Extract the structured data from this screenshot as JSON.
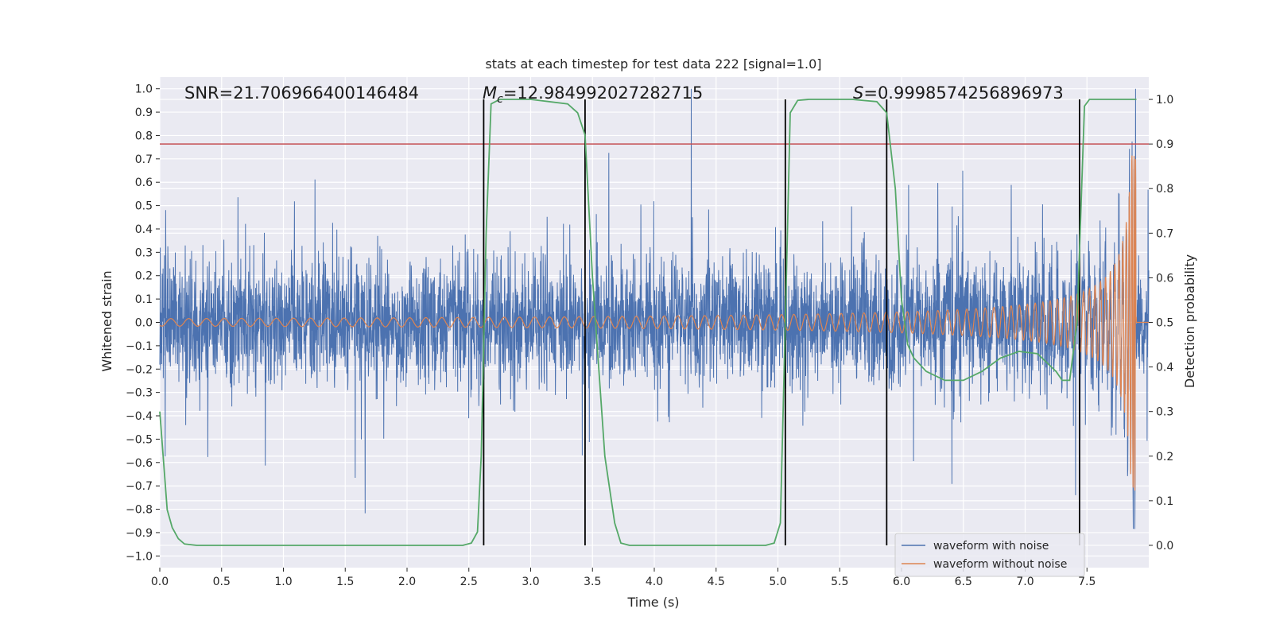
{
  "chart_data": {
    "type": "line",
    "title": "stats at each timestep for test data 222 [signal=1.0]",
    "xlabel": "Time (s)",
    "ylabel_left": "Whitened strain",
    "ylabel_right": "Detection probability",
    "xlim": [
      0.0,
      8.0
    ],
    "ylim_left": [
      -1.05,
      1.05
    ],
    "ylim_right": [
      -0.05,
      1.05
    ],
    "x_ticks": [
      "0.0",
      "0.5",
      "1.0",
      "1.5",
      "2.0",
      "2.5",
      "3.0",
      "3.5",
      "4.0",
      "4.5",
      "5.0",
      "5.5",
      "6.0",
      "6.5",
      "7.0",
      "7.5"
    ],
    "x_tick_values": [
      0.0,
      0.5,
      1.0,
      1.5,
      2.0,
      2.5,
      3.0,
      3.5,
      4.0,
      4.5,
      5.0,
      5.5,
      6.0,
      6.5,
      7.0,
      7.5
    ],
    "y_left_ticks": [
      "1.0",
      "0.9",
      "0.8",
      "0.7",
      "0.6",
      "0.5",
      "0.4",
      "0.3",
      "0.2",
      "0.1",
      "0.0",
      "−0.1",
      "−0.2",
      "−0.3",
      "−0.4",
      "−0.5",
      "−0.6",
      "−0.7",
      "−0.8",
      "−0.9",
      "−1.0"
    ],
    "y_left_tick_values": [
      1.0,
      0.9,
      0.8,
      0.7,
      0.6,
      0.5,
      0.4,
      0.3,
      0.2,
      0.1,
      0.0,
      -0.1,
      -0.2,
      -0.3,
      -0.4,
      -0.5,
      -0.6,
      -0.7,
      -0.8,
      -0.9,
      -1.0
    ],
    "y_right_ticks": [
      "1.0",
      "0.9",
      "0.8",
      "0.7",
      "0.6",
      "0.5",
      "0.4",
      "0.3",
      "0.2",
      "0.1",
      "0.0"
    ],
    "y_right_tick_values": [
      1.0,
      0.9,
      0.8,
      0.7,
      0.6,
      0.5,
      0.4,
      0.3,
      0.2,
      0.1,
      0.0
    ],
    "annotations": {
      "snr": "SNR=21.706966400146484",
      "mc": "=12.984992027282715",
      "mc_symbol": "M",
      "mc_sub": "c",
      "s": "=0.9998574256896973",
      "s_symbol": "S"
    },
    "threshold_probability": 0.9,
    "event_lines_x": [
      2.62,
      3.44,
      5.06,
      5.88,
      7.44
    ],
    "series": [
      {
        "name": "waveform with noise",
        "color": "#4c72b0",
        "axis": "left",
        "description_values": {
          "noise_std": 0.13,
          "spike_max": 1.0,
          "spike_min": -0.94
        }
      },
      {
        "name": "waveform without noise",
        "color": "#dd8452",
        "axis": "left",
        "description_values": {
          "chirp_end_time": 7.9,
          "chirp_peak": 0.71,
          "chirp_trough": -0.72
        }
      },
      {
        "name": "detection probability",
        "color": "#55a868",
        "axis": "right",
        "x": [
          0.0,
          0.06,
          0.1,
          0.15,
          0.2,
          0.3,
          1.0,
          2.0,
          2.45,
          2.52,
          2.57,
          2.6,
          2.64,
          2.68,
          2.75,
          3.0,
          3.3,
          3.38,
          3.44,
          3.5,
          3.6,
          3.68,
          3.73,
          3.8,
          4.5,
          4.9,
          4.97,
          5.02,
          5.06,
          5.1,
          5.16,
          5.25,
          5.6,
          5.8,
          5.88,
          5.95,
          6.0,
          6.05,
          6.1,
          6.2,
          6.35,
          6.5,
          6.65,
          6.8,
          6.95,
          7.1,
          7.25,
          7.3,
          7.36,
          7.42,
          7.48,
          7.52,
          7.6,
          7.9
        ],
        "y": [
          0.3,
          0.08,
          0.04,
          0.015,
          0.003,
          0.0,
          0.0,
          0.0,
          0.0,
          0.005,
          0.03,
          0.2,
          0.7,
          0.99,
          1.0,
          1.0,
          0.99,
          0.97,
          0.92,
          0.6,
          0.2,
          0.05,
          0.005,
          0.0,
          0.0,
          0.0,
          0.005,
          0.05,
          0.5,
          0.97,
          0.998,
          1.0,
          1.0,
          0.995,
          0.97,
          0.8,
          0.55,
          0.45,
          0.42,
          0.39,
          0.37,
          0.37,
          0.39,
          0.42,
          0.435,
          0.43,
          0.39,
          0.37,
          0.37,
          0.5,
          0.985,
          1.0,
          1.0,
          1.0
        ]
      }
    ],
    "legend": {
      "location": "lower-right",
      "entries": [
        "waveform with noise",
        "waveform without noise"
      ]
    }
  }
}
